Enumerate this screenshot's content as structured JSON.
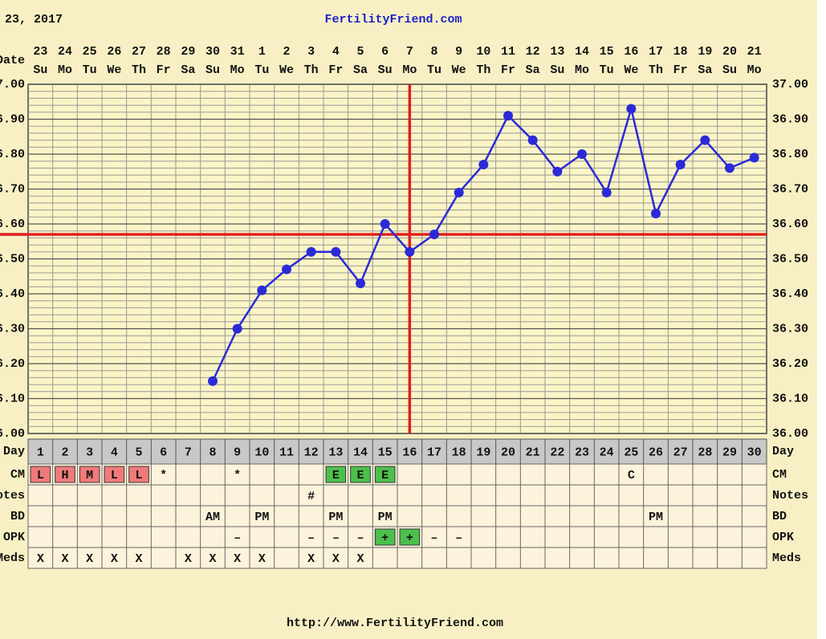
{
  "chart_data": {
    "type": "line",
    "header": "23, 2017",
    "title": "FertilityFriend.com",
    "footer": "http://www.FertilityFriend.com",
    "date_label": "Date",
    "day_label": "Day",
    "dates": [
      "23",
      "24",
      "25",
      "26",
      "27",
      "28",
      "29",
      "30",
      "31",
      "1",
      "2",
      "3",
      "4",
      "5",
      "6",
      "7",
      "8",
      "9",
      "10",
      "11",
      "12",
      "13",
      "14",
      "15",
      "16",
      "17",
      "18",
      "19",
      "20",
      "21"
    ],
    "weekdays": [
      "Su",
      "Mo",
      "Tu",
      "We",
      "Th",
      "Fr",
      "Sa",
      "Su",
      "Mo",
      "Tu",
      "We",
      "Th",
      "Fr",
      "Sa",
      "Su",
      "Mo",
      "Tu",
      "We",
      "Th",
      "Fr",
      "Sa",
      "Su",
      "Mo",
      "Tu",
      "We",
      "Th",
      "Fr",
      "Sa",
      "Su",
      "Mo"
    ],
    "categories": [
      1,
      2,
      3,
      4,
      5,
      6,
      7,
      8,
      9,
      10,
      11,
      12,
      13,
      14,
      15,
      16,
      17,
      18,
      19,
      20,
      21,
      22,
      23,
      24,
      25,
      26,
      27,
      28,
      29,
      30
    ],
    "series": [
      {
        "name": "Temperature",
        "color": "#2a2ad8",
        "values": [
          null,
          null,
          null,
          null,
          null,
          null,
          null,
          36.15,
          36.3,
          36.41,
          36.47,
          36.52,
          36.52,
          36.43,
          36.6,
          36.52,
          36.57,
          36.69,
          36.77,
          36.91,
          36.84,
          36.75,
          36.8,
          36.69,
          36.93,
          36.63,
          36.77,
          36.84,
          36.76,
          36.79
        ]
      }
    ],
    "ylim": [
      36.0,
      37.0
    ],
    "yticks": [
      {
        "value": 36.0,
        "label": "36.00"
      },
      {
        "value": 36.1,
        "label": "36.10"
      },
      {
        "value": 36.2,
        "label": "36.20"
      },
      {
        "value": 36.3,
        "label": "36.30"
      },
      {
        "value": 36.4,
        "label": "36.40"
      },
      {
        "value": 36.5,
        "label": "36.50"
      },
      {
        "value": 36.6,
        "label": "36.60"
      },
      {
        "value": 36.7,
        "label": "36.70"
      },
      {
        "value": 36.8,
        "label": "36.80"
      },
      {
        "value": 36.9,
        "label": "36.90"
      },
      {
        "value": 37.0,
        "label": "37.00"
      }
    ],
    "coverline": 36.57,
    "ovulation_day": 16,
    "marker_line_color": "#e02020",
    "grid": true,
    "cell_colors": {
      "L": "#f07a7a",
      "H": "#f07a7a",
      "M": "#f07a7a",
      "E": "#4cc04c",
      "+": "#4cc04c"
    },
    "rows": [
      {
        "label": "CM",
        "cells": [
          "L",
          "H",
          "M",
          "L",
          "L",
          "*",
          null,
          null,
          "*",
          null,
          null,
          null,
          "E",
          "E",
          "E",
          null,
          null,
          null,
          null,
          null,
          null,
          null,
          null,
          null,
          "C",
          null,
          null,
          null,
          null,
          null
        ]
      },
      {
        "label": "Notes",
        "cells": [
          null,
          null,
          null,
          null,
          null,
          null,
          null,
          null,
          null,
          null,
          null,
          "#",
          null,
          null,
          null,
          null,
          null,
          null,
          null,
          null,
          null,
          null,
          null,
          null,
          null,
          null,
          null,
          null,
          null,
          null
        ]
      },
      {
        "label": "BD",
        "cells": [
          null,
          null,
          null,
          null,
          null,
          null,
          null,
          "AM",
          null,
          "PM",
          null,
          null,
          "PM",
          null,
          "PM",
          null,
          null,
          null,
          null,
          null,
          null,
          null,
          null,
          null,
          null,
          "PM",
          null,
          null,
          null,
          null
        ]
      },
      {
        "label": "OPK",
        "cells": [
          null,
          null,
          null,
          null,
          null,
          null,
          null,
          null,
          "–",
          null,
          null,
          "–",
          "–",
          "–",
          "+",
          "+",
          "–",
          "–",
          null,
          null,
          null,
          null,
          null,
          null,
          null,
          null,
          null,
          null,
          null,
          null
        ]
      },
      {
        "label": "Meds",
        "cells": [
          "X",
          "X",
          "X",
          "X",
          "X",
          null,
          "X",
          "X",
          "X",
          "X",
          null,
          "X",
          "X",
          "X",
          null,
          null,
          null,
          null,
          null,
          null,
          null,
          null,
          null,
          null,
          null,
          null,
          null,
          null,
          null,
          null
        ]
      }
    ]
  }
}
